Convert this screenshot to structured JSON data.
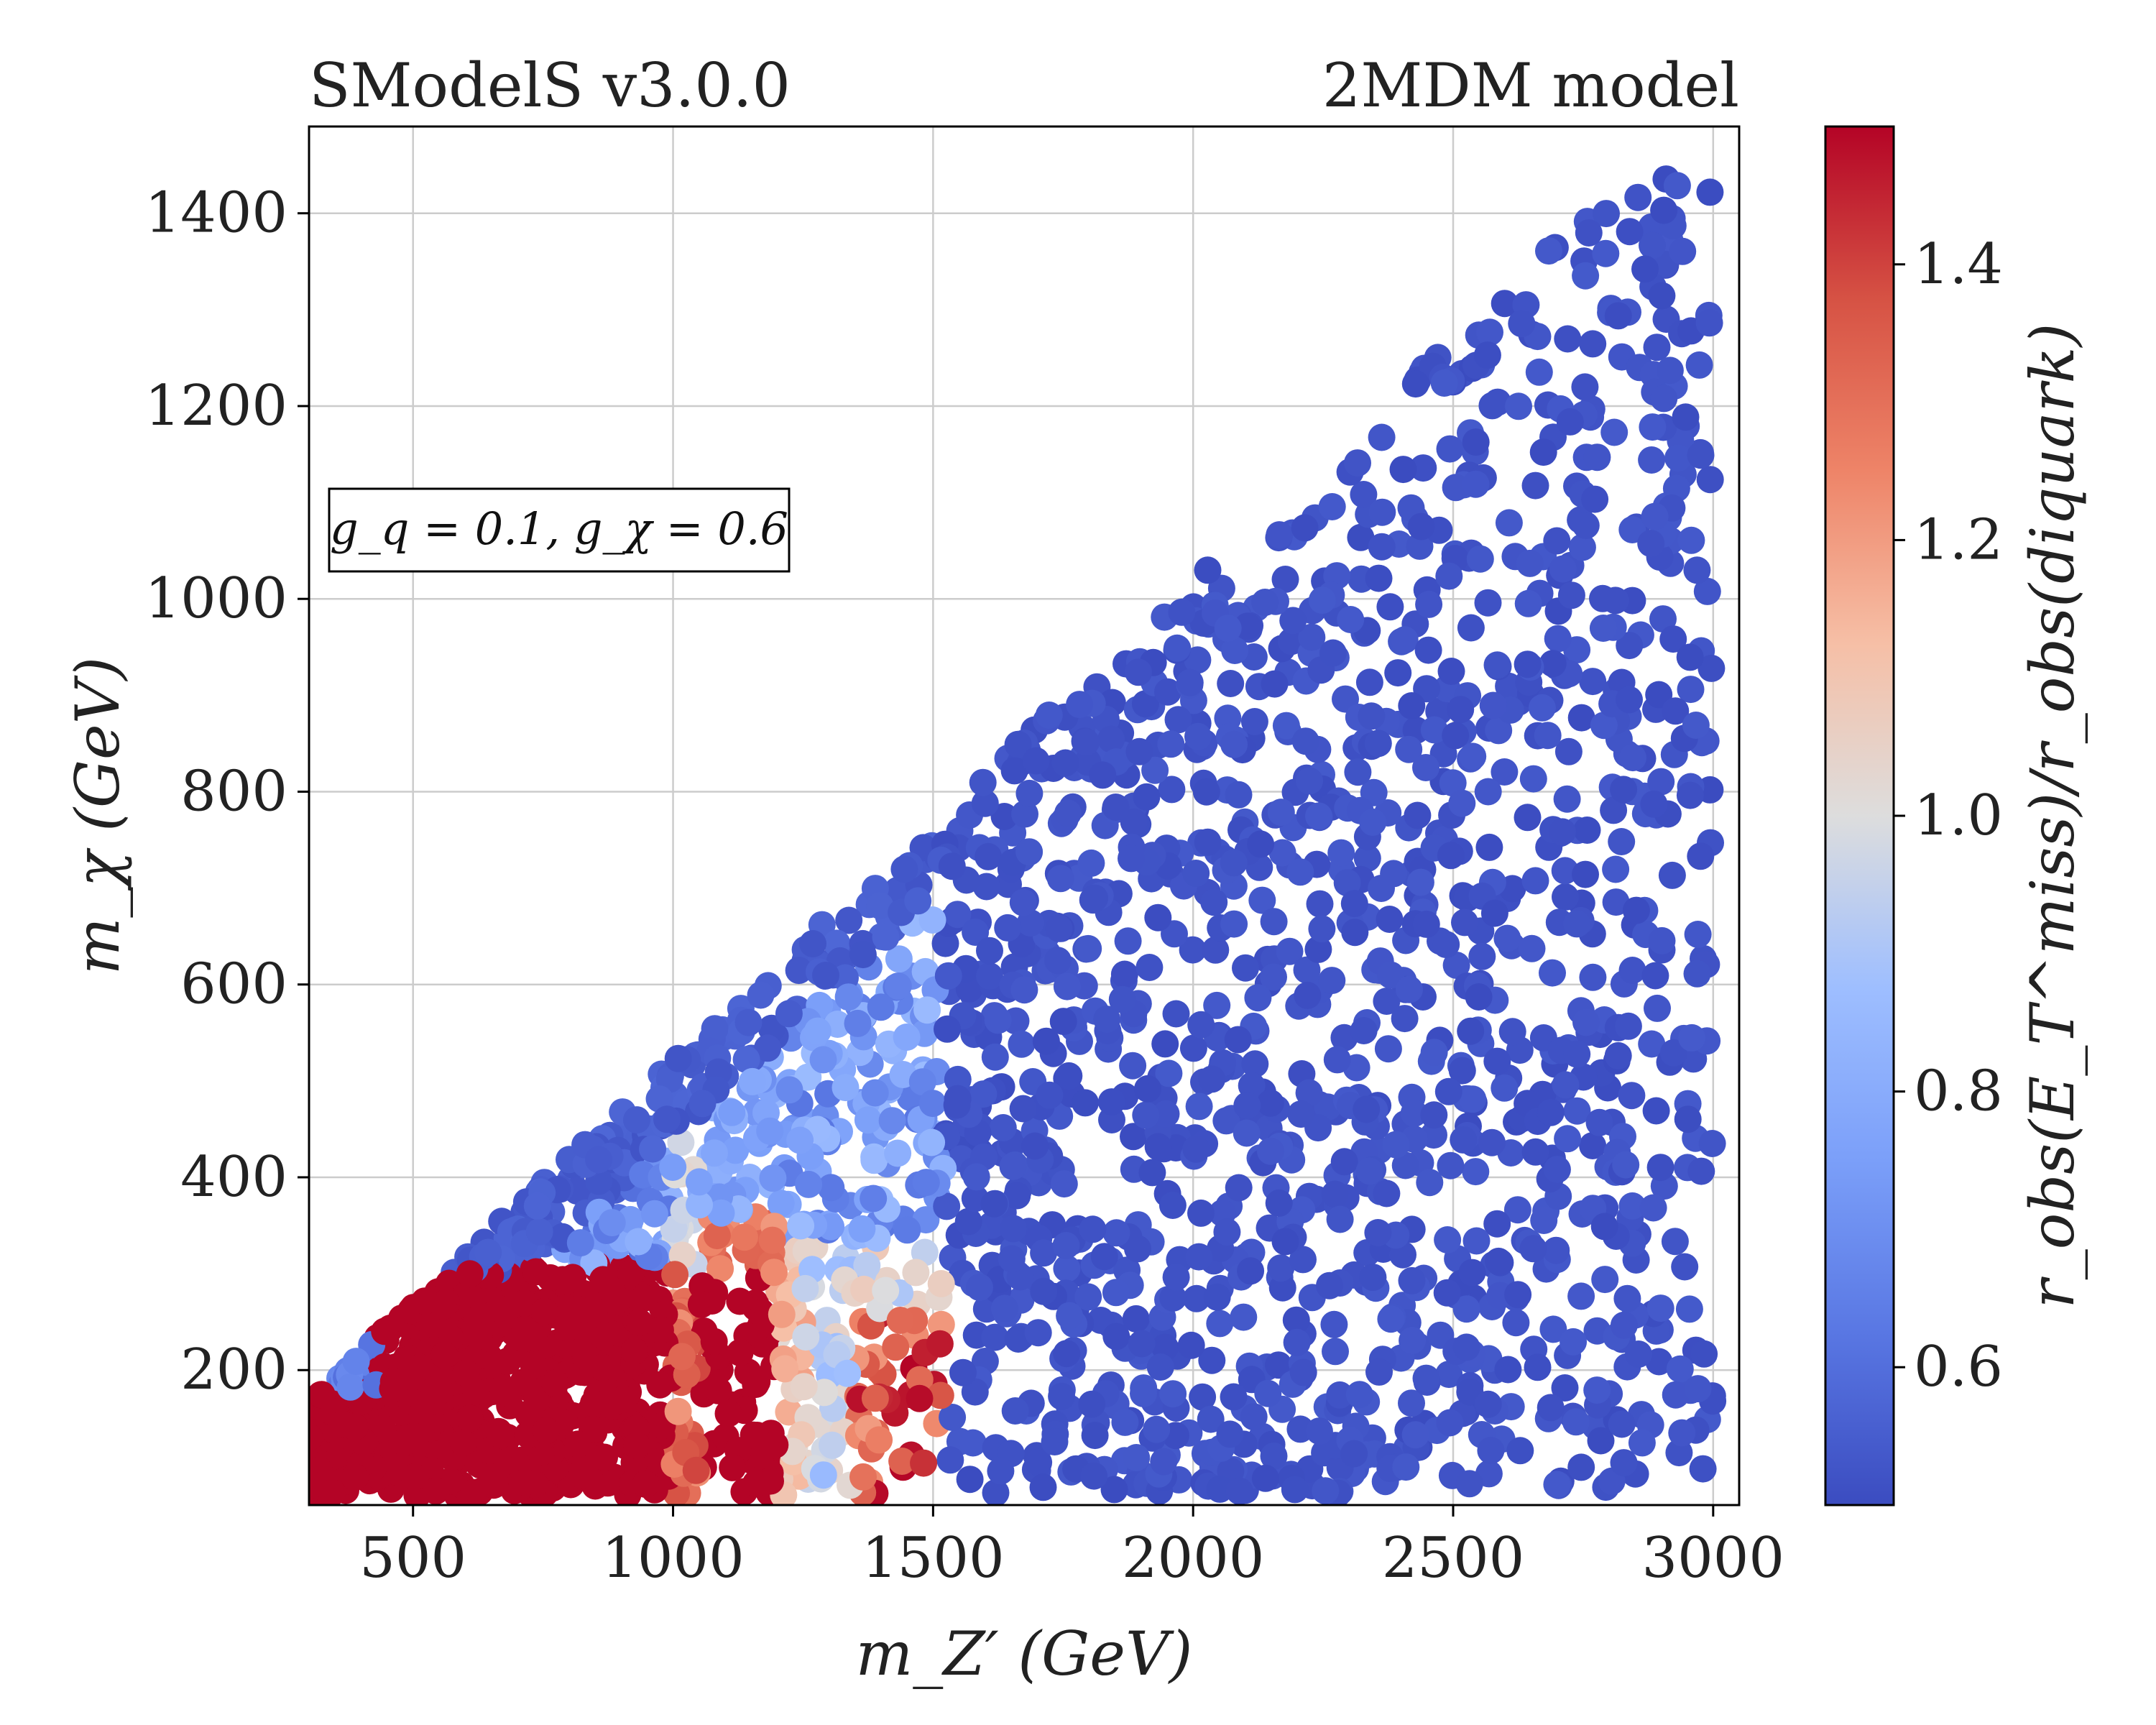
{
  "header": {
    "left_title": "SModelS v3.0.0",
    "right_title": "2MDM model"
  },
  "annotation": "g_q = 0.1, g_χ = 0.6",
  "colors": {
    "low": "#3b4cc0",
    "mid": "#dddddd",
    "high": "#b40426"
  },
  "chart_data": {
    "type": "scatter",
    "xlabel": "m_Z′ (GeV)",
    "ylabel": "m_χ (GeV)",
    "colorbar_label": "r_obs(E_T^miss)/r_obs(diquark)",
    "xlim": [
      300,
      3050
    ],
    "ylim": [
      60,
      1490
    ],
    "xticks": [
      500,
      1000,
      1500,
      2000,
      2500,
      3000
    ],
    "yticks": [
      200,
      400,
      600,
      800,
      1000,
      1200,
      1400
    ],
    "clim": [
      0.5,
      1.5
    ],
    "cticks": [
      0.6,
      0.8,
      1.0,
      1.2,
      1.4
    ],
    "grid": true,
    "colormap": "coolwarm",
    "constraint": "m_χ ≤ m_Z′ / 2 (approx)",
    "region_values": [
      {
        "region": "m_Z′ > 1500 GeV",
        "r_ratio": 0.5
      },
      {
        "region": "upper edge m_Z′ 400–1500 GeV",
        "r_ratio": 0.55
      },
      {
        "region": "m_Z′ 300–1000 GeV, m_χ < 300 GeV",
        "r_ratio": 1.5
      },
      {
        "region": "m_Z′ 1050–1200 GeV, m_χ < 300 GeV",
        "r_ratio": 1.5
      },
      {
        "region": "m_Z′ 1250–1350 GeV, m_χ < 350 GeV",
        "r_ratio": 0.95
      },
      {
        "region": "m_Z′ 1350–1500 GeV, m_χ < 250 GeV",
        "r_ratio": 1.3
      },
      {
        "region": "m_Z′ 1200–1500 GeV, m_χ 350–480 GeV",
        "r_ratio": 0.75
      }
    ]
  }
}
